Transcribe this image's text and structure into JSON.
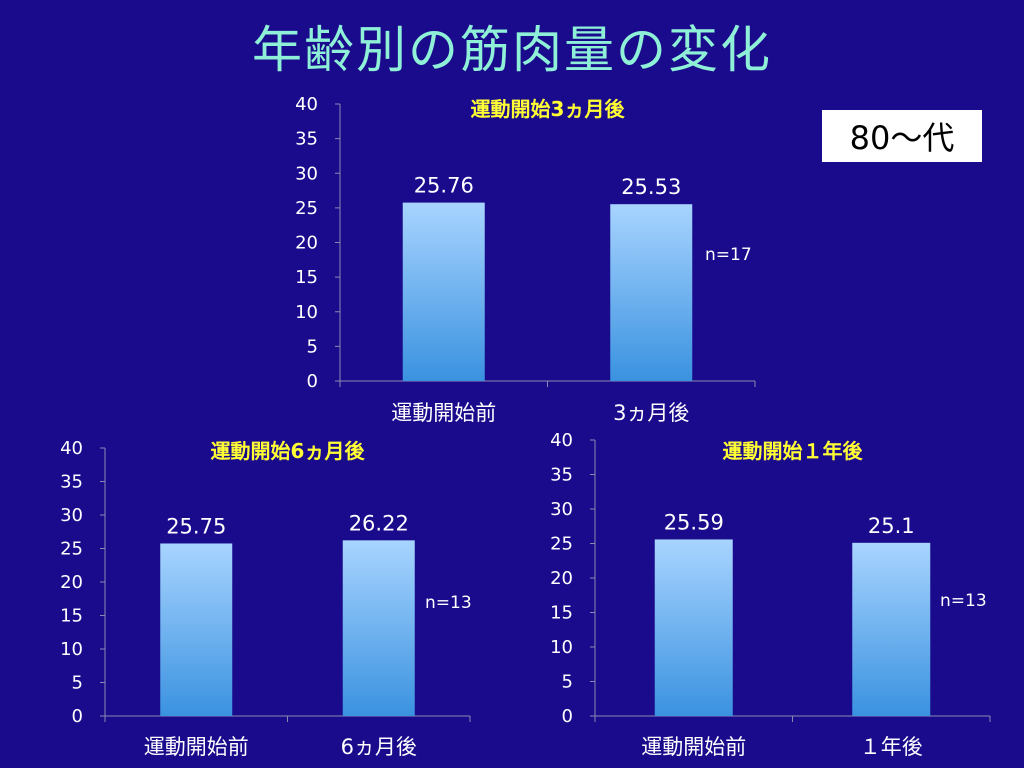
{
  "page": {
    "title": "年齢別の筋肉量の変化",
    "age_label": "80〜代"
  },
  "colors": {
    "background": "#1a0a8c",
    "title": "#8ff0d8",
    "chart_title": "#ffff33",
    "text": "#ffffff",
    "bar_top": "#a8d4ff",
    "bar_bottom": "#3a92e0"
  },
  "chart_data": [
    {
      "type": "bar",
      "title": "運動開始3ヵ月後",
      "categories": [
        "運動開始前",
        "3ヵ月後"
      ],
      "values": [
        25.76,
        25.53
      ],
      "value_labels": [
        "25.76",
        "25.53"
      ],
      "n_label": "n=17",
      "xlabel": "",
      "ylabel": "",
      "ylim": [
        0,
        40
      ],
      "yticks": [
        "0",
        "5",
        "10",
        "15",
        "20",
        "25",
        "30",
        "35",
        "40"
      ],
      "grid": false,
      "legend": "none"
    },
    {
      "type": "bar",
      "title": "運動開始6ヵ月後",
      "categories": [
        "運動開始前",
        "6ヵ月後"
      ],
      "values": [
        25.75,
        26.22
      ],
      "value_labels": [
        "25.75",
        "26.22"
      ],
      "n_label": "n=13",
      "xlabel": "",
      "ylabel": "",
      "ylim": [
        0,
        40
      ],
      "yticks": [
        "0",
        "5",
        "10",
        "15",
        "20",
        "25",
        "30",
        "35",
        "40"
      ],
      "grid": false,
      "legend": "none"
    },
    {
      "type": "bar",
      "title": "運動開始１年後",
      "categories": [
        "運動開始前",
        "１年後"
      ],
      "values": [
        25.59,
        25.1
      ],
      "value_labels": [
        "25.59",
        "25.1"
      ],
      "n_label": "n=13",
      "xlabel": "",
      "ylabel": "",
      "ylim": [
        0,
        40
      ],
      "yticks": [
        "0",
        "5",
        "10",
        "15",
        "20",
        "25",
        "30",
        "35",
        "40"
      ],
      "grid": false,
      "legend": "none"
    }
  ]
}
